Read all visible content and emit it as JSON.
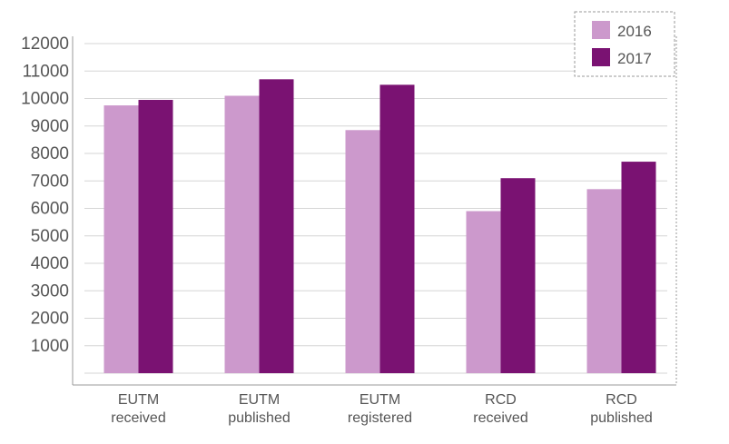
{
  "chart_data": {
    "type": "bar",
    "categories": [
      [
        "EUTM",
        "received"
      ],
      [
        "EUTM",
        "published"
      ],
      [
        "EUTM",
        "registered"
      ],
      [
        "RCD",
        "received"
      ],
      [
        "RCD",
        "published"
      ]
    ],
    "series": [
      {
        "name": "2016",
        "color": "#cc99cc",
        "values": [
          9750,
          10100,
          8850,
          5900,
          6700
        ]
      },
      {
        "name": "2017",
        "color": "#7a1272",
        "values": [
          9950,
          10700,
          10500,
          7100,
          7700
        ]
      }
    ],
    "yticks": [
      1000,
      2000,
      3000,
      4000,
      5000,
      6000,
      7000,
      8000,
      9000,
      10000,
      11000,
      12000
    ],
    "ylim": [
      0,
      12000
    ],
    "grid": true,
    "legend_position": "top-right",
    "title": "",
    "xlabel": "",
    "ylabel": ""
  }
}
